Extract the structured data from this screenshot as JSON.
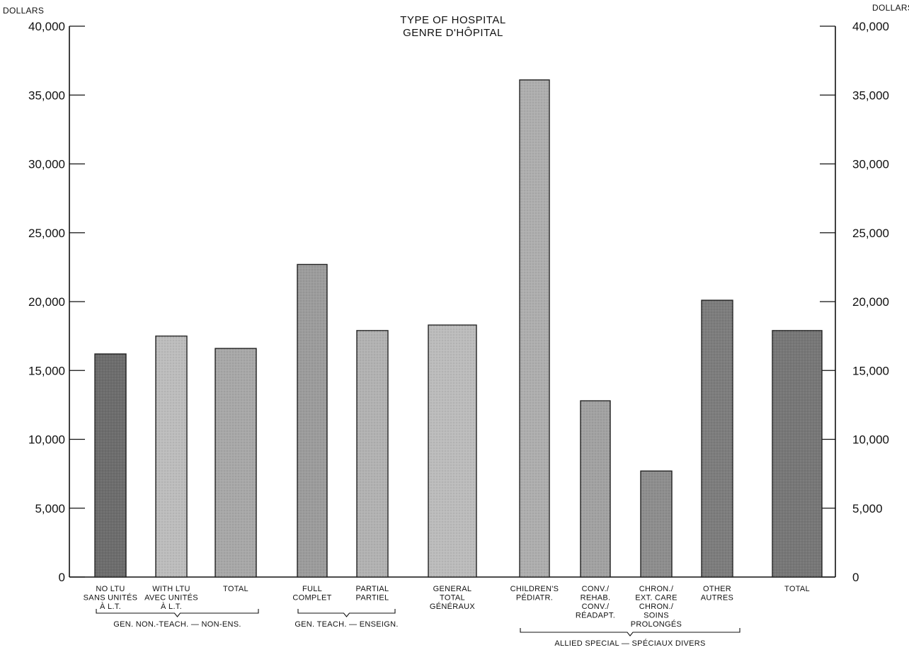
{
  "chart_data": {
    "type": "bar",
    "title": "TYPE OF HOSPITAL",
    "subtitle": "GENRE D'HÔPITAL",
    "ylabel_left": "DOLLARS",
    "ylabel_right": "DOLLARS",
    "ylim": [
      0,
      40000
    ],
    "yticks": [
      0,
      5000,
      10000,
      15000,
      20000,
      25000,
      30000,
      35000,
      40000
    ],
    "ytick_labels": [
      "0",
      "5,000",
      "10,000",
      "15,000",
      "20,000",
      "25,000",
      "30,000",
      "35,000",
      "40,000"
    ],
    "categories": [
      {
        "lines": [
          "NO LTU",
          "SANS UNITÉS",
          "À L.T."
        ],
        "value": 16200,
        "shade": "#6d6d6d"
      },
      {
        "lines": [
          "WITH LTU",
          "AVEC UNITÉS",
          "À L.T."
        ],
        "value": 17500,
        "shade": "#bdbdbd"
      },
      {
        "lines": [
          "TOTAL"
        ],
        "value": 16600,
        "shade": "#a8a8a8"
      },
      {
        "lines": [
          "FULL",
          "COMPLET"
        ],
        "value": 22700,
        "shade": "#9c9c9c"
      },
      {
        "lines": [
          "PARTIAL",
          "PARTIEL"
        ],
        "value": 17900,
        "shade": "#b2b2b2"
      },
      {
        "lines": [
          "GENERAL",
          "TOTAL",
          "GÉNÉRAUX"
        ],
        "value": 18300,
        "shade": "#bcbcbc"
      },
      {
        "lines": [
          "CHILDREN'S",
          "PÉDIATR."
        ],
        "value": 36100,
        "shade": "#aeaeae"
      },
      {
        "lines": [
          "CONV./",
          "REHAB.",
          "CONV./",
          "RÉADAPT."
        ],
        "value": 12800,
        "shade": "#a2a2a2"
      },
      {
        "lines": [
          "CHRON./",
          "EXT. CARE",
          "CHRON./",
          "SOINS",
          "PROLONGÉS"
        ],
        "value": 7700,
        "shade": "#8e8e8e"
      },
      {
        "lines": [
          "OTHER",
          "AUTRES"
        ],
        "value": 20100,
        "shade": "#7d7d7d"
      },
      {
        "lines": [
          "TOTAL"
        ],
        "value": 17900,
        "shade": "#777777"
      }
    ],
    "groups": [
      {
        "label": "GEN. NON.-TEACH. — NON-ENS.",
        "from": 0,
        "to": 2
      },
      {
        "label": "GEN. TEACH. — ENSEIGN.",
        "from": 3,
        "to": 4
      },
      {
        "label": "ALLIED SPECIAL — SPÉCIAUX DIVERS",
        "from": 6,
        "to": 9
      }
    ],
    "legend": "none",
    "grid": false
  }
}
